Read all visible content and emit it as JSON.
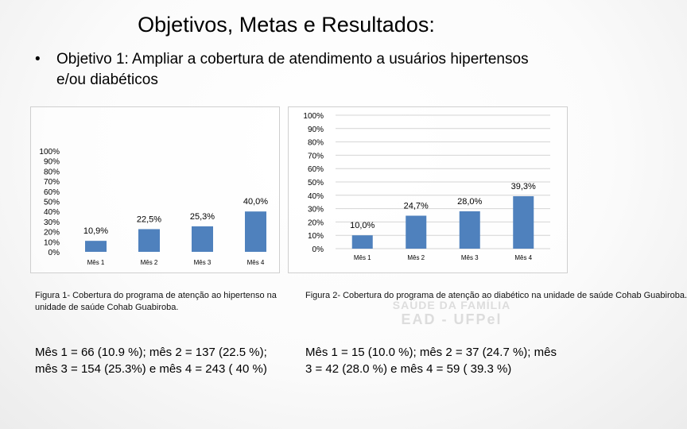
{
  "slide": {
    "title": "Objetivos, Metas e Resultados:",
    "bullet_symbol": "•",
    "bullet_text": "Objetivo 1: Ampliar a cobertura de atendimento a usuários hipertensos e/ou diabéticos"
  },
  "chart_data": [
    {
      "type": "bar",
      "title": "",
      "xlabel": "",
      "ylabel": "",
      "ylim": [
        0,
        1
      ],
      "grid": false,
      "y_ticks": [
        "100%",
        "90%",
        "80%",
        "70%",
        "60%",
        "50%",
        "40%",
        "30%",
        "20%",
        "10%",
        "0%"
      ],
      "categories": [
        "Mês 1",
        "Mês 2",
        "Mês 3",
        "Mês 4"
      ],
      "values": [
        0.109,
        0.225,
        0.253,
        0.4
      ],
      "data_labels": [
        "10,9%",
        "22,5%",
        "25,3%",
        "40,0%"
      ],
      "bar_color": "#4f81bd"
    },
    {
      "type": "bar",
      "title": "",
      "xlabel": "",
      "ylabel": "",
      "ylim": [
        0,
        1
      ],
      "grid": true,
      "y_ticks": [
        "100%",
        "90%",
        "80%",
        "70%",
        "60%",
        "50%",
        "40%",
        "30%",
        "20%",
        "10%",
        "0%"
      ],
      "categories": [
        "Mês 1",
        "Mês 2",
        "Mês 3",
        "Mês 4"
      ],
      "values": [
        0.1,
        0.247,
        0.28,
        0.393
      ],
      "data_labels": [
        "10,0%",
        "24,7%",
        "28,0%",
        "39,3%"
      ],
      "bar_color": "#4f81bd"
    }
  ],
  "captions": {
    "figure1": "Figura 1- Cobertura do programa de atenção ao hipertenso na unidade de saúde Cohab Guabiroba.",
    "figure2": "Figura 2- Cobertura do programa de atenção ao diabético na unidade de saúde Cohab Guabiroba."
  },
  "notes": {
    "left": "Mês 1 = 66 (10.9 %); mês 2 = 137 (22.5 %); mês 3 = 154 (25.3%) e mês 4 = 243 ( 40 %)",
    "right": "Mês 1 = 15 (10.0 %); mês 2 = 37 (24.7 %); mês 3 = 42 (28.0 %) e mês 4 = 59 ( 39.3 %)"
  },
  "watermark": {
    "line1": "SAÚDE DA FAMÍLIA",
    "line2": "EAD - UFPel"
  }
}
